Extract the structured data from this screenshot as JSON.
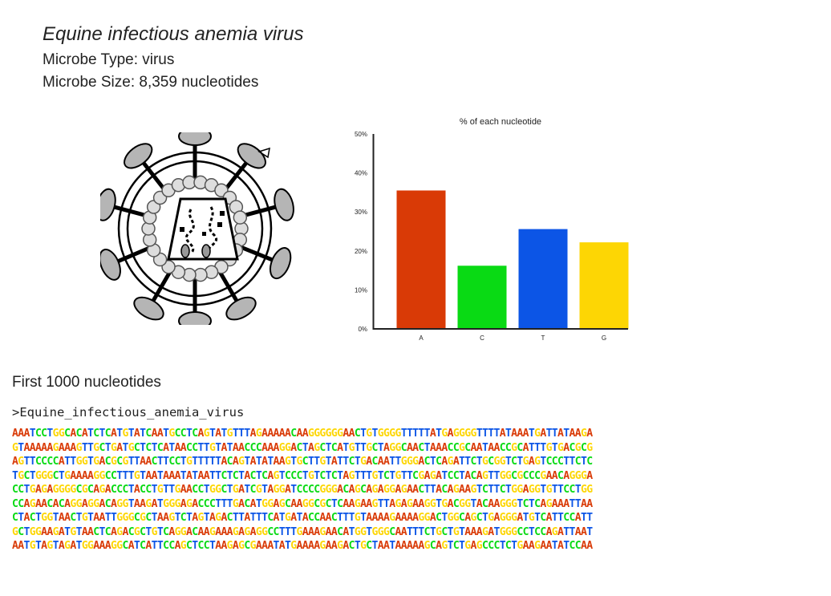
{
  "header": {
    "title": "Equine infectious anemia virus",
    "type_line": "Microbe Type: virus",
    "size_line": "Microbe Size: 8,359 nucleotides"
  },
  "chart_data": {
    "type": "bar",
    "title": "% of each nucleotide",
    "categories": [
      "A",
      "C",
      "T",
      "G"
    ],
    "values": [
      35.5,
      16.2,
      25.6,
      22.2
    ],
    "colors": [
      "#d93a06",
      "#09da14",
      "#0c55e6",
      "#fdd604"
    ],
    "ylim": [
      0,
      50
    ],
    "yticks": [
      0,
      10,
      20,
      30,
      40,
      50
    ],
    "ytick_labels": [
      "0%",
      "10%",
      "20%",
      "30%",
      "40%",
      "50%"
    ],
    "xlabel": "",
    "ylabel": "",
    "grid": false,
    "legend": "none"
  },
  "sequence": {
    "heading": "First 1000 nucleotides",
    "fasta_header": ">Equine_infectious_anemia_virus",
    "base_colors": {
      "A": "#d93a06",
      "C": "#09da14",
      "T": "#0c55e6",
      "G": "#fdd604"
    },
    "lines": [
      "AAATCCTGGCACATCTCATGTATCAATGCCTCAGTATGTTTAGAAAAACAAGGGGGGAACTGTGGGGTTTTTATGAGGGGTTTTATAAATGATTATAAGA",
      "GTAAAAAGAAAGTTGCTGATGCTCTCATAACCTTGTATAACCCAAAGGACTAGCTCATGTTGCTAGGCAACTAAACCGCAATAACCGCATTTGTGACGCG",
      "AGTTCCCCATTGGTGACGCGTTAACTTCCTGTTTTTACAGTATATAAGTGCTTGTATTCTGACAATTGGGACTCAGATTCTGCGGTCTGAGTCCCTTCTC",
      "TGCTGGGCTGAAAAGGCCTTTGTAATAAATATAATTCTCTACTCAGTCCCTGTCTCTAGTTTGTCTGTTCGAGATCCTACAGTTGGCGCCCGAACAGGGA",
      "CCTGAGAGGGGCGCAGACCCTACCTGTTGAACCTGGCTGATCGTAGGATCCCCGGGACAGCAGAGGAGAACTTACAGAAGTCTTCTGGAGGTGTTCCTGG",
      "CCAGAACACAGGAGGACAGGTAAGATGGGAGACCCTTTGACATGGAGCAAGGCGCTCAAGAAGTTAGAGAAGGTGACGGTACAAGGGTCTCAGAAATTAA",
      "CTACTGGTAACTGTAATTGGGCGCTAAGTCTAGTAGACTTATTTCATGATACCAACTTTGTAAAAGAAAAGGACTGGCAGCTGAGGGATGTCATTCCATT",
      "GCTGGAAGATGTAACTCAGACGCTGTCAGGACAAGAAAGAGAGGCCTTTGAAAGAACATGGTGGGCAATTTCTGCTGTAAAGATGGGCCTCCAGATTAAT",
      "AATGTAGTAGATGGAAAGGCATCATTCCAGCTCCTAAGAGCGAAATATGAAAAGAAGACTGCTAATAAAAAGCAGTCTGAGCCCTCTGAAGAATATCCAA"
    ]
  },
  "image": {
    "icon": "virus-diagram-icon"
  }
}
